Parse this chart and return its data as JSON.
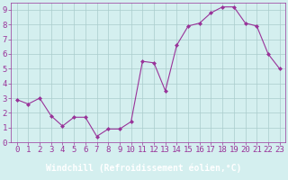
{
  "x": [
    0,
    1,
    2,
    3,
    4,
    5,
    6,
    7,
    8,
    9,
    10,
    11,
    12,
    13,
    14,
    15,
    16,
    17,
    18,
    19,
    20,
    21,
    22,
    23
  ],
  "y": [
    2.9,
    2.6,
    3.0,
    1.8,
    1.1,
    1.7,
    1.7,
    0.4,
    0.9,
    0.9,
    1.4,
    5.5,
    5.4,
    3.5,
    6.6,
    7.9,
    8.1,
    8.8,
    9.2,
    9.2,
    8.1,
    7.9,
    6.0,
    5.0
  ],
  "line_color": "#993399",
  "marker": "D",
  "marker_size": 2.0,
  "bg_color": "#d4efef",
  "grid_color": "#aacccc",
  "xlabel": "Windchill (Refroidissement éolien,°C)",
  "xlabel_color": "#993399",
  "xlabel_bg": "#9933aa",
  "ylim": [
    0,
    9.5
  ],
  "xlim": [
    -0.5,
    23.5
  ],
  "yticks": [
    0,
    1,
    2,
    3,
    4,
    5,
    6,
    7,
    8,
    9
  ],
  "xticks": [
    0,
    1,
    2,
    3,
    4,
    5,
    6,
    7,
    8,
    9,
    10,
    11,
    12,
    13,
    14,
    15,
    16,
    17,
    18,
    19,
    20,
    21,
    22,
    23
  ],
  "tick_color": "#993399",
  "spine_color": "#993399",
  "tick_fontsize": 6.5,
  "xlabel_fontsize": 7.0
}
